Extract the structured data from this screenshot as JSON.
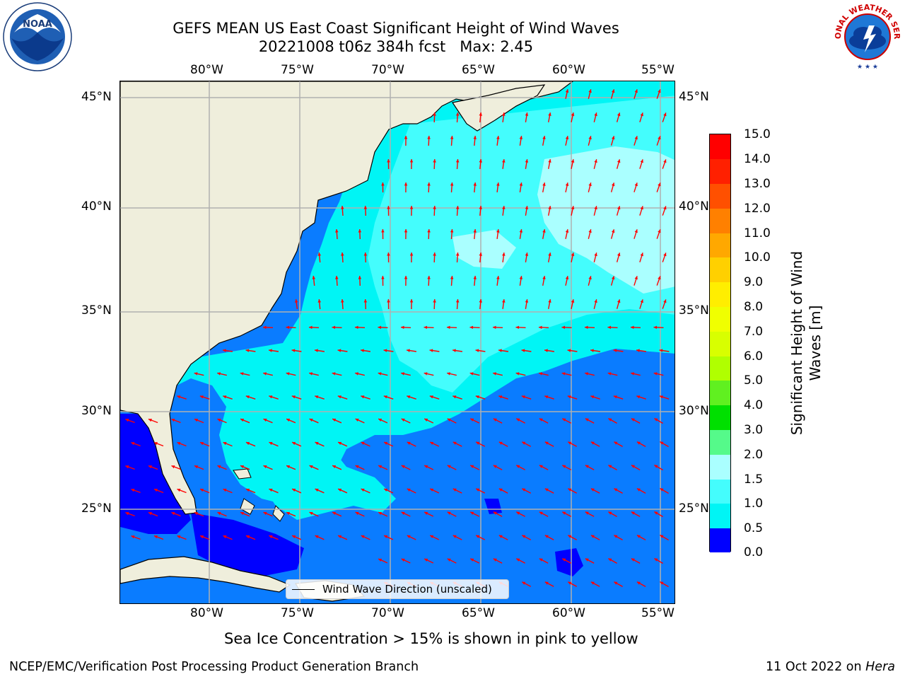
{
  "header": {
    "title_line1": "GEFS MEAN US East Coast Significant Height of Wind Waves",
    "title_line2": "20221008 t06z 384h fcst   Max: 2.45"
  },
  "logos": {
    "left": {
      "name": "noaa-logo",
      "text": "NOAA"
    },
    "right": {
      "name": "nws-logo",
      "text": "NATIONAL WEATHER SERVICE"
    }
  },
  "map": {
    "lon_labels": [
      "80°W",
      "75°W",
      "70°W",
      "65°W",
      "60°W",
      "55°W"
    ],
    "lat_labels": [
      "45°N",
      "40°N",
      "35°N",
      "30°N",
      "25°N"
    ],
    "legend_text": "Wind Wave Direction (unscaled)",
    "ocean_colors": {
      "level_0_0_5": "#0000ff",
      "level_0_5_1": "#0a7cff",
      "level_1_1_5": "#00f5f5",
      "level_1_5_2": "#44fdfd",
      "level_2_3": "#aaffff",
      "land": "#efeedc",
      "arrow": "#ff0000"
    }
  },
  "colorbar": {
    "tick_labels": [
      "15.0",
      "14.0",
      "13.0",
      "12.0",
      "11.0",
      "10.0",
      "9.0",
      "8.0",
      "7.0",
      "6.0",
      "5.0",
      "4.0",
      "3.0",
      "2.0",
      "1.5",
      "1.0",
      "0.5",
      "0.0"
    ],
    "label": "Significant Height of Wind Waves [m]",
    "label_line1": "Significant Height of Wind",
    "label_line2": "Waves [m]",
    "colors": [
      "#ff0000",
      "#ff2000",
      "#ff5000",
      "#ff8000",
      "#ffa800",
      "#ffd000",
      "#ffee00",
      "#f0ff00",
      "#d8ff00",
      "#b0ff00",
      "#60f020",
      "#00e000",
      "#00c800",
      "#55fa8a",
      "#aaffff",
      "#44fdfd",
      "#00f5f5",
      "#0a7cff",
      "#0000ff"
    ]
  },
  "notes": {
    "sea_ice": "Sea Ice Concentration > 15% is shown in pink to yellow"
  },
  "footer": {
    "left": "NCEP/EMC/Verification Post Processing Product Generation Branch",
    "right_date": "11 Oct 2022 on ",
    "right_machine": "Hera"
  }
}
